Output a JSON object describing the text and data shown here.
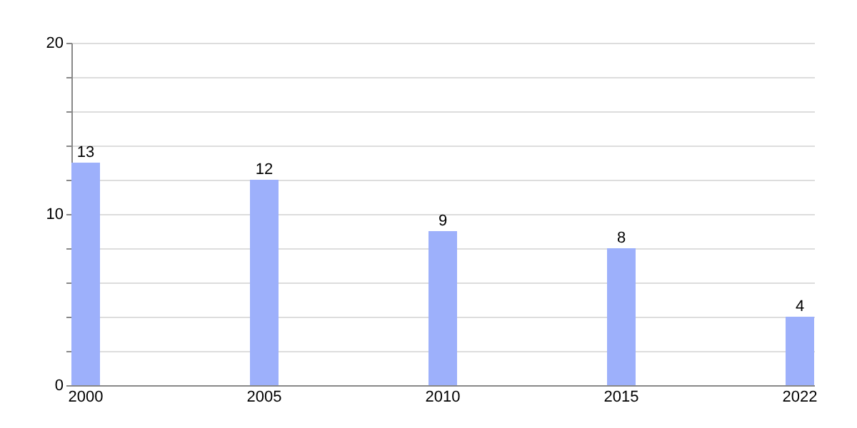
{
  "chart_data": {
    "type": "bar",
    "categories": [
      "2000",
      "2005",
      "2010",
      "2015",
      "2022"
    ],
    "values": [
      13,
      12,
      9,
      8,
      4
    ],
    "color": "#9db0fb",
    "ylim": [
      0,
      20
    ],
    "yticks": [
      0,
      {
        "value": 2,
        "label": null
      },
      {
        "value": 4,
        "label": null
      },
      {
        "value": 6,
        "label": null
      },
      {
        "value": 8,
        "label": null
      },
      10,
      {
        "value": 12,
        "label": null
      },
      {
        "value": 14,
        "label": null
      },
      {
        "value": 16,
        "label": null
      },
      {
        "value": 18,
        "label": null
      },
      20
    ],
    "grid": "y",
    "data_labels": true
  }
}
